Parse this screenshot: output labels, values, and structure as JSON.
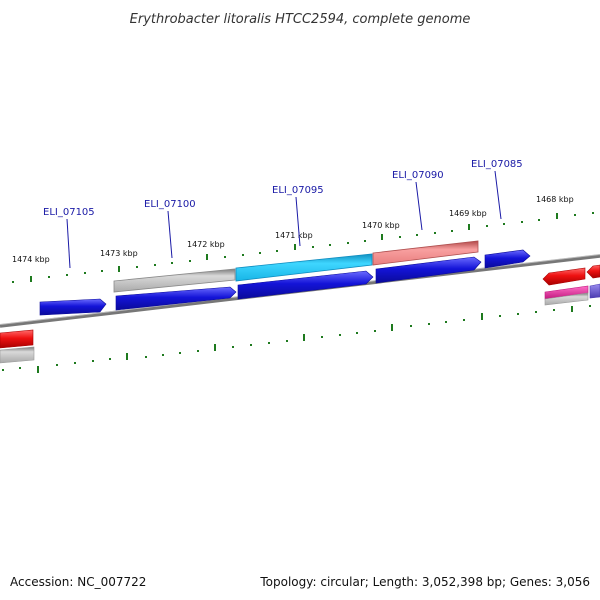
{
  "title": "Erythrobacter litoralis HTCC2594, complete genome",
  "footer": {
    "accession": "Accession: NC_007722",
    "summary": "Topology: circular; Length: 3,052,398 bp; Genes: 3,056"
  },
  "scale_labels": [
    "1474 kbp",
    "1473 kbp",
    "1472 kbp",
    "1471 kbp",
    "1470 kbp",
    "1469 kbp",
    "1468 kbp"
  ],
  "gene_labels": [
    "ELI_07105",
    "ELI_07100",
    "ELI_07095",
    "ELI_07090",
    "ELI_07085"
  ],
  "colors": {
    "forward_gene": "#1414d8",
    "backbone": "#777777",
    "grey_gene": "#b5b5b5",
    "cyan_gene": "#1ec3ef",
    "salmon_gene": "#ef8a8a",
    "red_gene": "#ee1111",
    "magenta_gene": "#e02b9e",
    "purple_gene": "#6a5acd",
    "tick": "#1e7a1e",
    "label": "#1a1aa6"
  }
}
